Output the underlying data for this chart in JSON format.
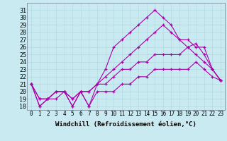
{
  "bg_color": "#c8eaf0",
  "grid_color": "#b8dce4",
  "line_color": "#aa00aa",
  "marker": "+",
  "xlabel": "Windchill (Refroidissement éolien,°C)",
  "xlabel_fontsize": 6.5,
  "ytick_fontsize": 6.0,
  "xtick_fontsize": 5.5,
  "ylim": [
    17.5,
    32.0
  ],
  "xlim": [
    -0.5,
    23.5
  ],
  "yticks": [
    18,
    19,
    20,
    21,
    22,
    23,
    24,
    25,
    26,
    27,
    28,
    29,
    30,
    31
  ],
  "xticks": [
    0,
    1,
    2,
    3,
    4,
    5,
    6,
    7,
    8,
    9,
    10,
    11,
    12,
    13,
    14,
    15,
    16,
    17,
    18,
    19,
    20,
    21,
    22,
    23
  ],
  "series": [
    [
      21,
      18,
      19,
      19,
      20,
      18,
      20,
      18,
      20,
      20,
      20,
      21,
      21,
      22,
      22,
      23,
      23,
      23,
      23,
      23,
      24,
      23,
      22,
      21.5
    ],
    [
      21,
      19,
      19,
      20,
      20,
      19,
      20,
      20,
      21,
      21,
      22,
      23,
      23,
      24,
      24,
      25,
      25,
      25,
      25,
      26,
      25,
      24,
      23,
      21.5
    ],
    [
      21,
      19,
      19,
      20,
      20,
      19,
      20,
      20,
      21,
      22,
      23,
      24,
      25,
      26,
      27,
      28,
      29,
      28,
      27,
      27,
      26,
      26,
      23,
      21.5
    ],
    [
      21,
      18,
      19,
      20,
      20,
      18,
      20,
      18,
      21,
      23,
      26,
      27,
      28,
      29,
      30,
      31,
      30,
      29,
      27,
      26,
      26.5,
      25,
      23,
      21.5
    ]
  ]
}
